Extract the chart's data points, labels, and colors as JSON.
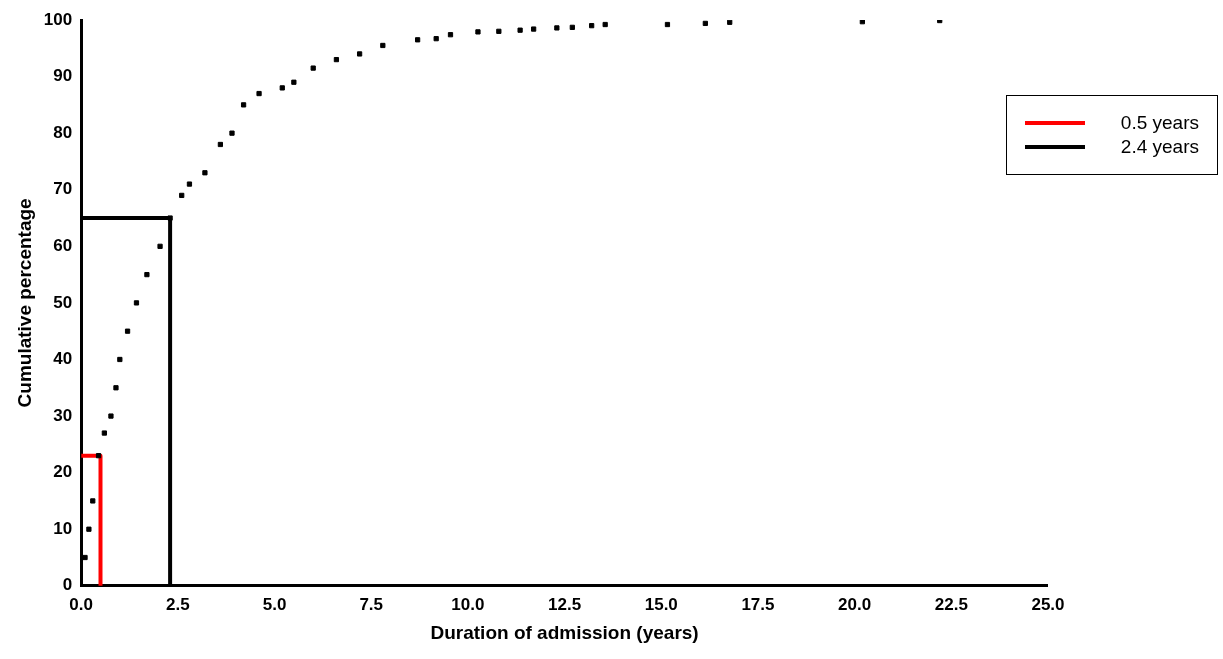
{
  "chart_data": {
    "type": "scatter",
    "xlabel": "Duration of admission (years)",
    "ylabel": "Cumulative percentage",
    "xlim": [
      0,
      25
    ],
    "xticks": [
      {
        "value": 0,
        "label": "0.0"
      },
      {
        "value": 2.5,
        "label": "2.5"
      },
      {
        "value": 5,
        "label": "5.0"
      },
      {
        "value": 7.5,
        "label": "7.5"
      },
      {
        "value": 10,
        "label": "10.0"
      },
      {
        "value": 12.5,
        "label": "12.5"
      },
      {
        "value": 15,
        "label": "15.0"
      },
      {
        "value": 17.5,
        "label": "17.5"
      },
      {
        "value": 20,
        "label": "20.0"
      },
      {
        "value": 22.5,
        "label": "22.5"
      },
      {
        "value": 25,
        "label": "25.0"
      }
    ],
    "ylim": [
      0,
      100
    ],
    "yticks": [
      0,
      10,
      20,
      30,
      40,
      50,
      60,
      70,
      80,
      90,
      100
    ],
    "grid": false,
    "legend": "top right",
    "series": [
      {
        "color": "#000000",
        "marker": "square",
        "x": [
          0.1,
          0.2,
          0.3,
          0.45,
          0.6,
          0.77,
          0.9,
          1.0,
          1.2,
          1.43,
          1.7,
          2.04,
          2.3,
          2.6,
          2.8,
          3.2,
          3.6,
          3.9,
          4.2,
          4.6,
          5.2,
          5.5,
          6.0,
          6.6,
          7.2,
          7.8,
          8.7,
          9.18,
          9.55,
          10.26,
          10.8,
          11.35,
          11.7,
          12.3,
          12.7,
          13.2,
          13.55,
          15.16,
          16.14,
          16.77,
          20.2,
          22.2
        ],
        "values": [
          5,
          10,
          15,
          23,
          27,
          30,
          35,
          40,
          45,
          50,
          55,
          60,
          65,
          69,
          71,
          73,
          78,
          80,
          85,
          87,
          88,
          89,
          91.5,
          93,
          94,
          95.5,
          96.5,
          96.7,
          97.4,
          97.9,
          98,
          98.2,
          98.4,
          98.6,
          98.7,
          99,
          99.2,
          99.2,
          99.4,
          99.6,
          99.7,
          99.9
        ]
      },
      {
        "type": "line",
        "marker": "none",
        "name": "0.5 years",
        "color": "#ff0000",
        "x": [
          0,
          0.5,
          0.5
        ],
        "values": [
          23,
          23,
          0
        ]
      },
      {
        "type": "line",
        "marker": "none",
        "name": "2.4 years",
        "color": "#000000",
        "x": [
          0,
          2.3,
          2.3
        ],
        "values": [
          65,
          65,
          0
        ]
      }
    ]
  }
}
